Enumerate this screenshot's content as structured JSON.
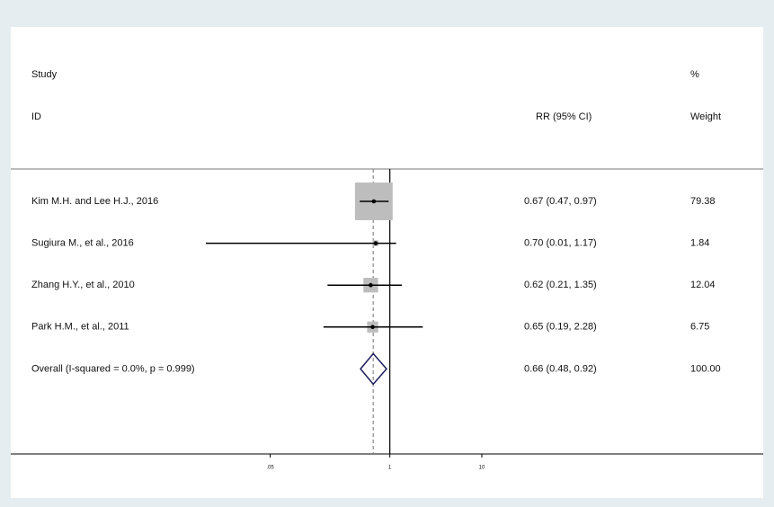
{
  "chart_data": {
    "type": "forest",
    "headers": {
      "study_top": "Study",
      "study": "ID",
      "estimate": "RR (95% CI)",
      "weight_top": "%",
      "weight": "Weight"
    },
    "studies": [
      "Kim M.H. and Lee H.J., 2016",
      "Sugiura M., et al., 2016",
      "Zhang H.Y., et al., 2010",
      "Park H.M., et al., 2011"
    ],
    "values": [
      0.67,
      0.7,
      0.62,
      0.65
    ],
    "lower": [
      0.47,
      0.01,
      0.21,
      0.19
    ],
    "upper": [
      0.97,
      1.17,
      1.35,
      2.28
    ],
    "value_labels": [
      "0.67 (0.47, 0.97)",
      "0.70 (0.01, 1.17)",
      "0.62 (0.21, 1.35)",
      "0.65 (0.19, 2.28)"
    ],
    "weights": [
      79.38,
      1.84,
      12.04,
      6.75
    ],
    "weight_labels": [
      "79.38",
      "1.84",
      "12.04",
      "6.75"
    ],
    "overall": {
      "label": "Overall  (I-squared = 0.0%, p = 0.999)",
      "value": 0.66,
      "lower": 0.48,
      "upper": 0.92,
      "value_label": "0.66 (0.48, 0.92)",
      "weight": 100,
      "weight_label": "100.00"
    },
    "xscale": "log",
    "xlim": [
      0.01,
      10
    ],
    "xticks": [
      {
        "value": 0.05,
        "label": ".05"
      },
      1,
      10
    ],
    "null_line": 1,
    "box_color": "#bdbdbd",
    "line_color": "#000000",
    "diamond_color": "#1c1c5c"
  }
}
